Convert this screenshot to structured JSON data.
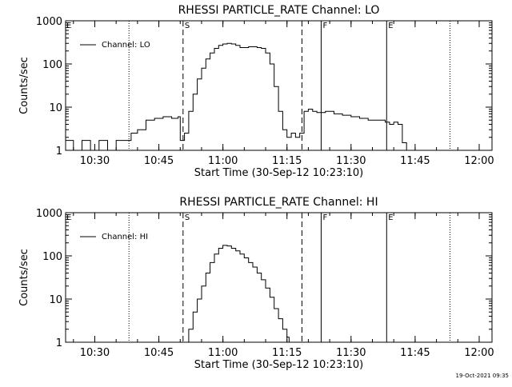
{
  "footer": {
    "timestamp": "19-Oct-2021 09:35"
  },
  "chart_data": [
    {
      "type": "line",
      "title": "RHESSI PARTICLE_RATE Channel: LO",
      "xlabel": "Start Time (30-Sep-12 10:23:10)",
      "ylabel": "Counts/sec",
      "yscale": "log",
      "ylim": [
        1,
        1000
      ],
      "xlim": [
        "10:23:10",
        "12:03:00"
      ],
      "x_ticks": [
        "10:30",
        "10:45",
        "11:00",
        "11:15",
        "11:30",
        "11:45",
        "12:00"
      ],
      "y_ticks": [
        "1",
        "10",
        "100",
        "1000"
      ],
      "legend": {
        "position": "top-left",
        "entries": [
          "Channel: LO"
        ]
      },
      "markers": [
        {
          "time": "10:38:00",
          "style": "dotted",
          "label": ""
        },
        {
          "time": "10:50:40",
          "style": "dashed",
          "label": "S"
        },
        {
          "time": "11:18:30",
          "style": "dashed",
          "label": ""
        },
        {
          "time": "11:23:00",
          "style": "solid",
          "label": "F"
        },
        {
          "time": "11:38:20",
          "style": "solid",
          "label": "E"
        },
        {
          "time": "11:53:10",
          "style": "dotted",
          "label": ""
        }
      ],
      "series": [
        {
          "name": "Channel: LO",
          "x": [
            "10:23:10",
            "10:25:00",
            "10:27:00",
            "10:29:00",
            "10:31:00",
            "10:33:00",
            "10:35:00",
            "10:37:00",
            "10:38:30",
            "10:40:00",
            "10:42:00",
            "10:44:00",
            "10:46:00",
            "10:48:00",
            "10:49:30",
            "10:50:00",
            "10:51:00",
            "10:52:00",
            "10:53:00",
            "10:54:00",
            "10:55:00",
            "10:56:00",
            "10:57:00",
            "10:58:00",
            "10:59:00",
            "11:00:00",
            "11:01:00",
            "11:02:00",
            "11:03:00",
            "11:04:00",
            "11:05:00",
            "11:06:00",
            "11:07:00",
            "11:08:00",
            "11:09:00",
            "11:10:00",
            "11:11:00",
            "11:12:00",
            "11:13:00",
            "11:14:00",
            "11:15:00",
            "11:16:00",
            "11:17:00",
            "11:18:00",
            "11:19:00",
            "11:20:00",
            "11:21:00",
            "11:22:00",
            "11:24:00",
            "11:26:00",
            "11:28:00",
            "11:30:00",
            "11:32:00",
            "11:34:00",
            "11:36:00",
            "11:38:00",
            "11:39:00",
            "11:40:00",
            "11:41:00",
            "11:42:00",
            "11:43:00",
            "11:44:00",
            "11:46:00",
            "11:48:00",
            "11:50:00",
            "11:52:00",
            "11:54:00",
            "11:56:00",
            "11:58:00",
            "12:00:00"
          ],
          "y": [
            1.7,
            1,
            1.7,
            1,
            1.7,
            1,
            1.7,
            1.7,
            2.5,
            3,
            5,
            5.5,
            6,
            5.5,
            6,
            1.7,
            2.5,
            8,
            20,
            45,
            80,
            130,
            180,
            230,
            270,
            290,
            300,
            290,
            270,
            240,
            240,
            250,
            250,
            240,
            230,
            180,
            100,
            30,
            8,
            3,
            2,
            2.5,
            2,
            2.5,
            8,
            9,
            8,
            7.5,
            8,
            7,
            6.5,
            6,
            5.5,
            5,
            5,
            4.5,
            4,
            4.5,
            4,
            1.5,
            1,
            1,
            1,
            1,
            1,
            1,
            1,
            1,
            1,
            1
          ]
        }
      ]
    },
    {
      "type": "line",
      "title": "RHESSI PARTICLE_RATE Channel: HI",
      "xlabel": "Start Time (30-Sep-12 10:23:10)",
      "ylabel": "Counts/sec",
      "yscale": "log",
      "ylim": [
        1,
        1000
      ],
      "xlim": [
        "10:23:10",
        "12:03:00"
      ],
      "x_ticks": [
        "10:30",
        "10:45",
        "11:00",
        "11:15",
        "11:30",
        "11:45",
        "12:00"
      ],
      "y_ticks": [
        "1",
        "10",
        "100",
        "1000"
      ],
      "legend": {
        "position": "top-left",
        "entries": [
          "Channel: HI"
        ]
      },
      "markers": [
        {
          "time": "10:38:00",
          "style": "dotted",
          "label": ""
        },
        {
          "time": "10:50:40",
          "style": "dashed",
          "label": "S"
        },
        {
          "time": "11:18:30",
          "style": "dashed",
          "label": ""
        },
        {
          "time": "11:23:00",
          "style": "solid",
          "label": "F"
        },
        {
          "time": "11:38:20",
          "style": "solid",
          "label": "E"
        },
        {
          "time": "11:53:10",
          "style": "dotted",
          "label": ""
        }
      ],
      "series": [
        {
          "name": "Channel: HI",
          "x": [
            "10:51:00",
            "10:52:00",
            "10:53:00",
            "10:54:00",
            "10:55:00",
            "10:56:00",
            "10:57:00",
            "10:58:00",
            "10:59:00",
            "11:00:00",
            "11:01:00",
            "11:02:00",
            "11:03:00",
            "11:04:00",
            "11:05:00",
            "11:06:00",
            "11:07:00",
            "11:08:00",
            "11:09:00",
            "11:10:00",
            "11:11:00",
            "11:12:00",
            "11:13:00",
            "11:14:00",
            "11:15:00",
            "11:15:30"
          ],
          "y": [
            1,
            2,
            5,
            10,
            20,
            40,
            70,
            110,
            150,
            175,
            170,
            150,
            130,
            110,
            90,
            70,
            55,
            40,
            28,
            18,
            11,
            6,
            3.5,
            2,
            1.3,
            1
          ]
        }
      ]
    }
  ]
}
